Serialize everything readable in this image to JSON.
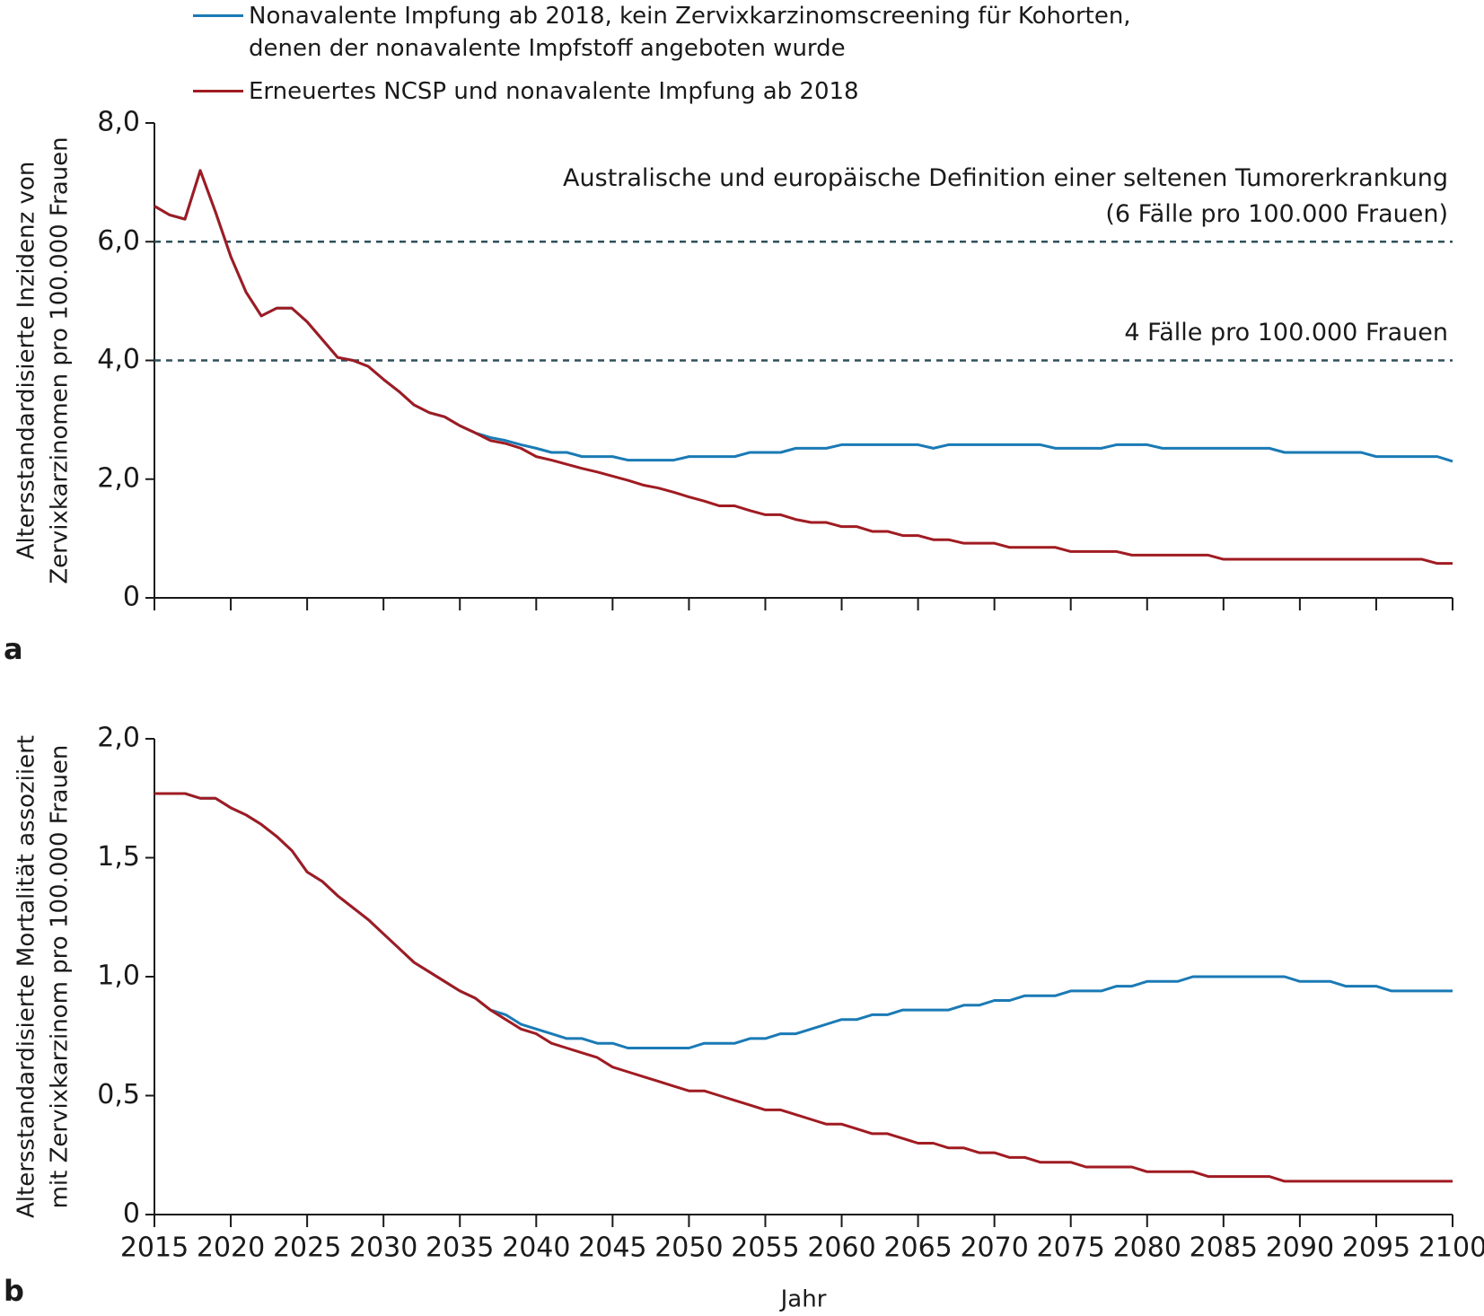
{
  "chart_data": [
    {
      "type": "line",
      "panel_label": "a",
      "ylabel": [
        "Altersstandardisierte Inzidenz von",
        "Zervixkarzinomen pro 100.000 Frauen"
      ],
      "legend": "top",
      "xtick_labels": false,
      "x": [
        2015,
        2016,
        2017,
        2018,
        2019,
        2020,
        2021,
        2022,
        2023,
        2024,
        2025,
        2026,
        2027,
        2028,
        2029,
        2030,
        2031,
        2032,
        2033,
        2034,
        2035,
        2036,
        2037,
        2038,
        2039,
        2040,
        2041,
        2042,
        2043,
        2044,
        2045,
        2046,
        2047,
        2048,
        2049,
        2050,
        2051,
        2052,
        2053,
        2054,
        2055,
        2056,
        2057,
        2058,
        2059,
        2060,
        2061,
        2062,
        2063,
        2064,
        2065,
        2066,
        2067,
        2068,
        2069,
        2070,
        2071,
        2072,
        2073,
        2074,
        2075,
        2076,
        2077,
        2078,
        2079,
        2080,
        2081,
        2082,
        2083,
        2084,
        2085,
        2086,
        2087,
        2088,
        2089,
        2090,
        2091,
        2092,
        2093,
        2094,
        2095,
        2096,
        2097,
        2098,
        2099,
        2100
      ],
      "xlim": [
        2015,
        2100
      ],
      "xticks": [
        2015,
        2020,
        2025,
        2030,
        2035,
        2040,
        2045,
        2050,
        2055,
        2060,
        2065,
        2070,
        2075,
        2080,
        2085,
        2090,
        2095,
        2100
      ],
      "ylim": [
        0,
        8
      ],
      "yticks": [
        0,
        {
          "value": 2,
          "label": "2,0"
        },
        {
          "value": 4,
          "label": "4,0"
        },
        {
          "value": 6,
          "label": "6,0"
        },
        {
          "value": 8,
          "label": "8,0"
        }
      ],
      "reference_lines": [
        {
          "value": 6,
          "color": "#2f4f5a",
          "label": [
            "Australische und europäische Definition einer seltenen Tumorerkrankung",
            "(6 Fälle pro 100.000 Frauen)"
          ]
        },
        {
          "value": 4,
          "color": "#2f4f5a",
          "label": [
            "4 Fälle pro 100.000 Frauen"
          ]
        }
      ],
      "series": [
        {
          "name": "Nonavalente Impfung ab 2018, kein Zervixkarzinomscreening für Kohorten, denen der nonavalente Impfstoff angeboten wurde",
          "color": "#1a7ab5",
          "values": [
            6.6,
            6.45,
            6.38,
            7.2,
            6.5,
            5.75,
            5.15,
            4.75,
            4.88,
            4.88,
            4.65,
            4.35,
            4.05,
            4.0,
            3.9,
            3.68,
            3.48,
            3.25,
            3.12,
            3.05,
            2.9,
            2.78,
            2.7,
            2.65,
            2.58,
            2.52,
            2.45,
            2.45,
            2.38,
            2.38,
            2.38,
            2.32,
            2.32,
            2.32,
            2.32,
            2.38,
            2.38,
            2.38,
            2.38,
            2.45,
            2.45,
            2.45,
            2.52,
            2.52,
            2.52,
            2.58,
            2.58,
            2.58,
            2.58,
            2.58,
            2.58,
            2.52,
            2.58,
            2.58,
            2.58,
            2.58,
            2.58,
            2.58,
            2.58,
            2.52,
            2.52,
            2.52,
            2.52,
            2.58,
            2.58,
            2.58,
            2.52,
            2.52,
            2.52,
            2.52,
            2.52,
            2.52,
            2.52,
            2.52,
            2.45,
            2.45,
            2.45,
            2.45,
            2.45,
            2.45,
            2.38,
            2.38,
            2.38,
            2.38,
            2.38,
            2.3
          ]
        },
        {
          "name": "Erneuertes NCSP und nonavalente Impfung ab 2018",
          "color": "#a01b22",
          "values": [
            6.6,
            6.45,
            6.38,
            7.2,
            6.5,
            5.75,
            5.15,
            4.75,
            4.88,
            4.88,
            4.65,
            4.35,
            4.05,
            4.0,
            3.9,
            3.68,
            3.48,
            3.25,
            3.12,
            3.05,
            2.9,
            2.78,
            2.65,
            2.6,
            2.52,
            2.38,
            2.32,
            2.25,
            2.18,
            2.12,
            2.05,
            1.98,
            1.9,
            1.85,
            1.78,
            1.7,
            1.63,
            1.55,
            1.55,
            1.47,
            1.4,
            1.4,
            1.32,
            1.27,
            1.27,
            1.2,
            1.2,
            1.12,
            1.12,
            1.05,
            1.05,
            0.98,
            0.98,
            0.92,
            0.92,
            0.92,
            0.85,
            0.85,
            0.85,
            0.85,
            0.78,
            0.78,
            0.78,
            0.78,
            0.72,
            0.72,
            0.72,
            0.72,
            0.72,
            0.72,
            0.65,
            0.65,
            0.65,
            0.65,
            0.65,
            0.65,
            0.65,
            0.65,
            0.65,
            0.65,
            0.65,
            0.65,
            0.65,
            0.65,
            0.58,
            0.58
          ]
        }
      ]
    },
    {
      "type": "line",
      "panel_label": "b",
      "ylabel": [
        "Altersstandardisierte Mortalität assoziiert",
        "mit Zervixkarzinom pro 100.000 Frauen"
      ],
      "xlabel": "Jahr",
      "xtick_labels": true,
      "x": [
        2015,
        2016,
        2017,
        2018,
        2019,
        2020,
        2021,
        2022,
        2023,
        2024,
        2025,
        2026,
        2027,
        2028,
        2029,
        2030,
        2031,
        2032,
        2033,
        2034,
        2035,
        2036,
        2037,
        2038,
        2039,
        2040,
        2041,
        2042,
        2043,
        2044,
        2045,
        2046,
        2047,
        2048,
        2049,
        2050,
        2051,
        2052,
        2053,
        2054,
        2055,
        2056,
        2057,
        2058,
        2059,
        2060,
        2061,
        2062,
        2063,
        2064,
        2065,
        2066,
        2067,
        2068,
        2069,
        2070,
        2071,
        2072,
        2073,
        2074,
        2075,
        2076,
        2077,
        2078,
        2079,
        2080,
        2081,
        2082,
        2083,
        2084,
        2085,
        2086,
        2087,
        2088,
        2089,
        2090,
        2091,
        2092,
        2093,
        2094,
        2095,
        2096,
        2097,
        2098,
        2099,
        2100
      ],
      "xlim": [
        2015,
        2100
      ],
      "xticks": [
        2015,
        2020,
        2025,
        2030,
        2035,
        2040,
        2045,
        2050,
        2055,
        2060,
        2065,
        2070,
        2075,
        2080,
        2085,
        2090,
        2095,
        2100
      ],
      "ylim": [
        0,
        2
      ],
      "yticks": [
        0,
        {
          "value": 0.5,
          "label": "0,5"
        },
        {
          "value": 1,
          "label": "1,0"
        },
        {
          "value": 1.5,
          "label": "1,5"
        },
        {
          "value": 2,
          "label": "2,0"
        }
      ],
      "series": [
        {
          "color": "#1a7ab5",
          "values": [
            1.77,
            1.77,
            1.77,
            1.75,
            1.75,
            1.71,
            1.68,
            1.64,
            1.59,
            1.53,
            1.44,
            1.4,
            1.34,
            1.29,
            1.24,
            1.18,
            1.12,
            1.06,
            1.02,
            0.98,
            0.94,
            0.91,
            0.86,
            0.84,
            0.8,
            0.78,
            0.76,
            0.74,
            0.74,
            0.72,
            0.72,
            0.7,
            0.7,
            0.7,
            0.7,
            0.7,
            0.72,
            0.72,
            0.72,
            0.74,
            0.74,
            0.76,
            0.76,
            0.78,
            0.8,
            0.82,
            0.82,
            0.84,
            0.84,
            0.86,
            0.86,
            0.86,
            0.86,
            0.88,
            0.88,
            0.9,
            0.9,
            0.92,
            0.92,
            0.92,
            0.94,
            0.94,
            0.94,
            0.96,
            0.96,
            0.98,
            0.98,
            0.98,
            1.0,
            1.0,
            1.0,
            1.0,
            1.0,
            1.0,
            1.0,
            0.98,
            0.98,
            0.98,
            0.96,
            0.96,
            0.96,
            0.94,
            0.94,
            0.94,
            0.94,
            0.94
          ]
        },
        {
          "color": "#a01b22",
          "values": [
            1.77,
            1.77,
            1.77,
            1.75,
            1.75,
            1.71,
            1.68,
            1.64,
            1.59,
            1.53,
            1.44,
            1.4,
            1.34,
            1.29,
            1.24,
            1.18,
            1.12,
            1.06,
            1.02,
            0.98,
            0.94,
            0.91,
            0.86,
            0.82,
            0.78,
            0.76,
            0.72,
            0.7,
            0.68,
            0.66,
            0.62,
            0.6,
            0.58,
            0.56,
            0.54,
            0.52,
            0.52,
            0.5,
            0.48,
            0.46,
            0.44,
            0.44,
            0.42,
            0.4,
            0.38,
            0.38,
            0.36,
            0.34,
            0.34,
            0.32,
            0.3,
            0.3,
            0.28,
            0.28,
            0.26,
            0.26,
            0.24,
            0.24,
            0.22,
            0.22,
            0.22,
            0.2,
            0.2,
            0.2,
            0.2,
            0.18,
            0.18,
            0.18,
            0.18,
            0.16,
            0.16,
            0.16,
            0.16,
            0.16,
            0.14,
            0.14,
            0.14,
            0.14,
            0.14,
            0.14,
            0.14,
            0.14,
            0.14,
            0.14,
            0.14,
            0.14
          ]
        }
      ]
    }
  ]
}
